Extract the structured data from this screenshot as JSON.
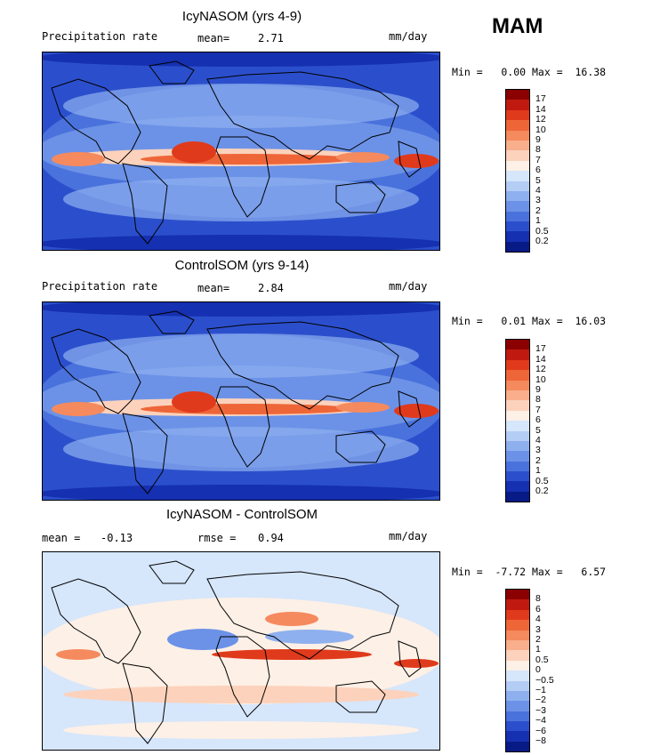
{
  "season": "MAM",
  "panels": [
    {
      "title": "IcyNASOM (yrs 4-9)",
      "left_label": "Precipitation rate",
      "mean_label": "mean=",
      "mean_value": "2.71",
      "units": "mm/day",
      "minmax": "Min =   0.00 Max =  16.38",
      "colorbar": {
        "levels": [
          "17",
          "14",
          "12",
          "10",
          "9",
          "8",
          "7",
          "6",
          "5",
          "4",
          "3",
          "2",
          "1",
          "0.5",
          "0.2"
        ],
        "colors": [
          "#8b0000",
          "#c01a10",
          "#e03a1c",
          "#ee6638",
          "#f58a5e",
          "#f9ae8c",
          "#fcd2bc",
          "#fdf0e6",
          "#d6e6fb",
          "#b4cdf5",
          "#8fb0ef",
          "#6c92e7",
          "#4a72dc",
          "#2b4fcc",
          "#1530b0",
          "#081a85"
        ]
      }
    },
    {
      "title": "ControlSOM (yrs 9-14)",
      "left_label": "Precipitation rate",
      "mean_label": "mean=",
      "mean_value": "2.84",
      "units": "mm/day",
      "minmax": "Min =   0.01 Max =  16.03",
      "colorbar": {
        "levels": [
          "17",
          "14",
          "12",
          "10",
          "9",
          "8",
          "7",
          "6",
          "5",
          "4",
          "3",
          "2",
          "1",
          "0.5",
          "0.2"
        ],
        "colors": [
          "#8b0000",
          "#c01a10",
          "#e03a1c",
          "#ee6638",
          "#f58a5e",
          "#f9ae8c",
          "#fcd2bc",
          "#fdf0e6",
          "#d6e6fb",
          "#b4cdf5",
          "#8fb0ef",
          "#6c92e7",
          "#4a72dc",
          "#2b4fcc",
          "#1530b0",
          "#081a85"
        ]
      }
    },
    {
      "title": "IcyNASOM - ControlSOM",
      "left_label": "mean =",
      "mean_label": "-0.13",
      "rmse_label": "rmse =",
      "rmse_value": "0.94",
      "units": "mm/day",
      "minmax": "Min =  -7.72 Max =   6.57",
      "colorbar": {
        "levels": [
          "8",
          "6",
          "4",
          "3",
          "2",
          "1",
          "0.5",
          "0",
          "-0.5",
          "-1",
          "-2",
          "-3",
          "-4",
          "-6",
          "-8"
        ],
        "colors": [
          "#8b0000",
          "#c01a10",
          "#e03a1c",
          "#ee6638",
          "#f58a5e",
          "#f9ae8c",
          "#fcd2bc",
          "#fdf0e6",
          "#d6e6fb",
          "#b4cdf5",
          "#8fb0ef",
          "#6c92e7",
          "#4a72dc",
          "#2b4fcc",
          "#1530b0",
          "#081a85"
        ]
      }
    }
  ]
}
